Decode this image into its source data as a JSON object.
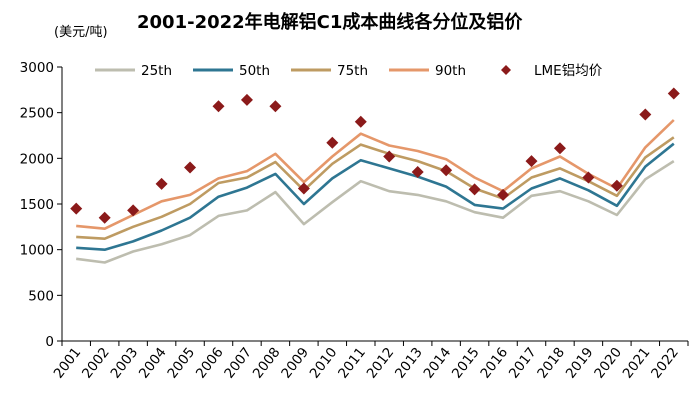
{
  "chart_data": {
    "type": "line",
    "title": "2001-2022年电解铝C1成本曲线各分位及铝价",
    "unit_label": "(美元/吨)",
    "xlabel": "",
    "ylabel": "",
    "ylim": [
      0,
      3000
    ],
    "yticks": [
      0,
      500,
      1000,
      1500,
      2000,
      2500,
      3000
    ],
    "grid": false,
    "legend_position": "top",
    "categories": [
      "2001",
      "2002",
      "2003",
      "2004",
      "2005",
      "2006",
      "2007",
      "2008",
      "2009",
      "2010",
      "2011",
      "2012",
      "2013",
      "2014",
      "2015",
      "2016",
      "2017",
      "2018",
      "2019",
      "2020",
      "2021",
      "2022"
    ],
    "series": [
      {
        "name": "25th",
        "type": "line",
        "color": "#BDBDAF",
        "values": [
          900,
          860,
          980,
          1060,
          1160,
          1370,
          1430,
          1630,
          1280,
          1520,
          1750,
          1640,
          1600,
          1530,
          1410,
          1350,
          1590,
          1640,
          1530,
          1380,
          1770,
          1970
        ]
      },
      {
        "name": "50th",
        "type": "line",
        "color": "#2E7692",
        "values": [
          1020,
          1000,
          1090,
          1210,
          1350,
          1580,
          1680,
          1830,
          1500,
          1780,
          1980,
          1890,
          1800,
          1690,
          1490,
          1450,
          1670,
          1780,
          1650,
          1480,
          1910,
          2160
        ]
      },
      {
        "name": "75th",
        "type": "line",
        "color": "#BE9B62",
        "values": [
          1140,
          1120,
          1250,
          1360,
          1500,
          1730,
          1790,
          1960,
          1650,
          1940,
          2150,
          2050,
          1970,
          1860,
          1670,
          1560,
          1790,
          1890,
          1750,
          1590,
          2010,
          2230
        ]
      },
      {
        "name": "90th",
        "type": "line",
        "color": "#E5976A",
        "values": [
          1260,
          1230,
          1380,
          1530,
          1600,
          1780,
          1860,
          2050,
          1740,
          2020,
          2270,
          2140,
          2080,
          1990,
          1790,
          1640,
          1890,
          2020,
          1830,
          1670,
          2120,
          2420
        ]
      },
      {
        "name": "LME铝均价",
        "type": "scatter",
        "color": "#8B1A1A",
        "values": [
          1450,
          1350,
          1430,
          1720,
          1900,
          2570,
          2640,
          2570,
          1670,
          2170,
          2400,
          2020,
          1850,
          1870,
          1660,
          1600,
          1970,
          2110,
          1790,
          1700,
          2480,
          2710
        ]
      }
    ]
  }
}
